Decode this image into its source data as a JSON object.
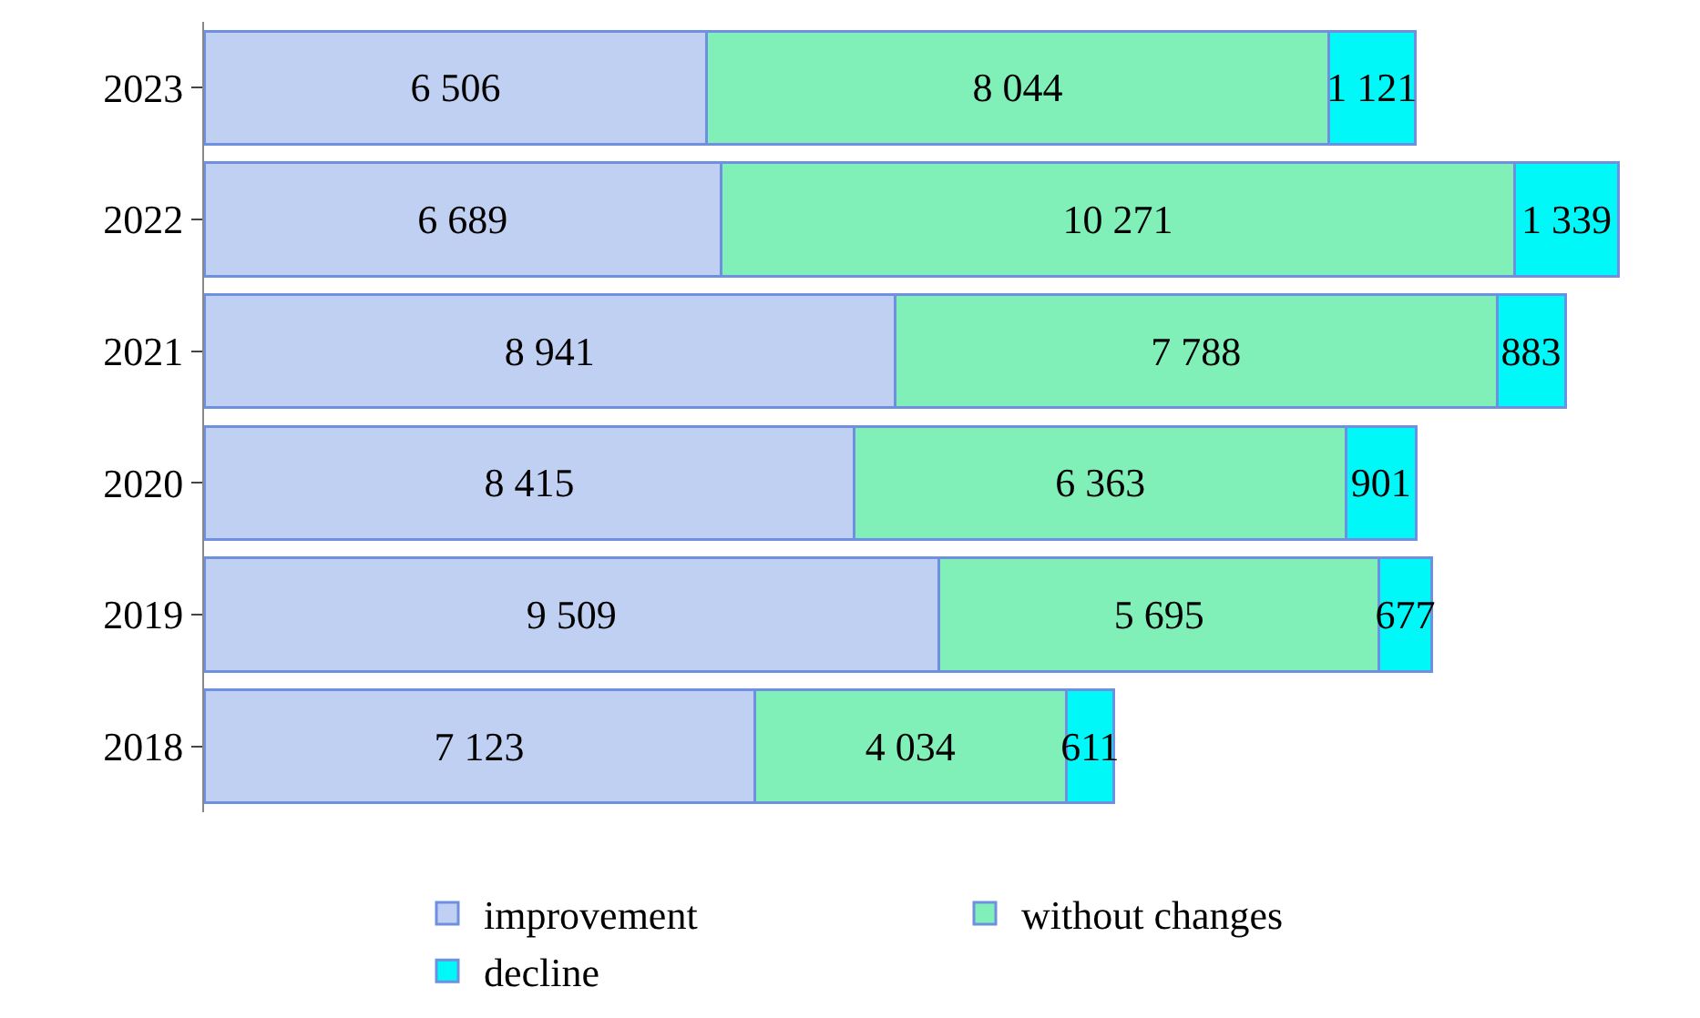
{
  "chart_data": {
    "type": "bar",
    "orientation": "horizontal",
    "stacked": true,
    "data_labels": true,
    "legend": "bottom",
    "categories": [
      "2023",
      "2022",
      "2021",
      "2020",
      "2019",
      "2018"
    ],
    "series": [
      {
        "name": "improvement",
        "color": "#c0d0f2",
        "values": [
          6506,
          6689,
          8941,
          8415,
          9509,
          7123
        ]
      },
      {
        "name": "without changes",
        "color": "#80f0b8",
        "values": [
          8044,
          10271,
          7788,
          6363,
          5695,
          4034
        ]
      },
      {
        "name": "decline",
        "color": "#00f8f8",
        "values": [
          1121,
          1339,
          883,
          901,
          677,
          611
        ]
      }
    ]
  }
}
